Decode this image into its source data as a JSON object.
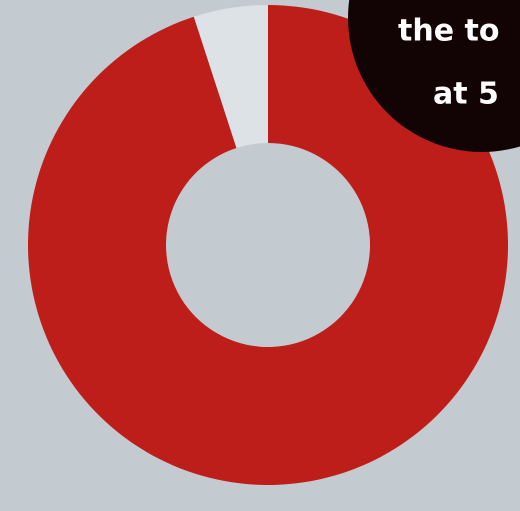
{
  "chart_data": {
    "type": "donut",
    "categories": [
      null,
      null
    ],
    "values": [
      95,
      5
    ],
    "colors": [
      "#be1e1a",
      "#dde2e6"
    ],
    "annotations": [
      "the to",
      "at 5"
    ]
  }
}
